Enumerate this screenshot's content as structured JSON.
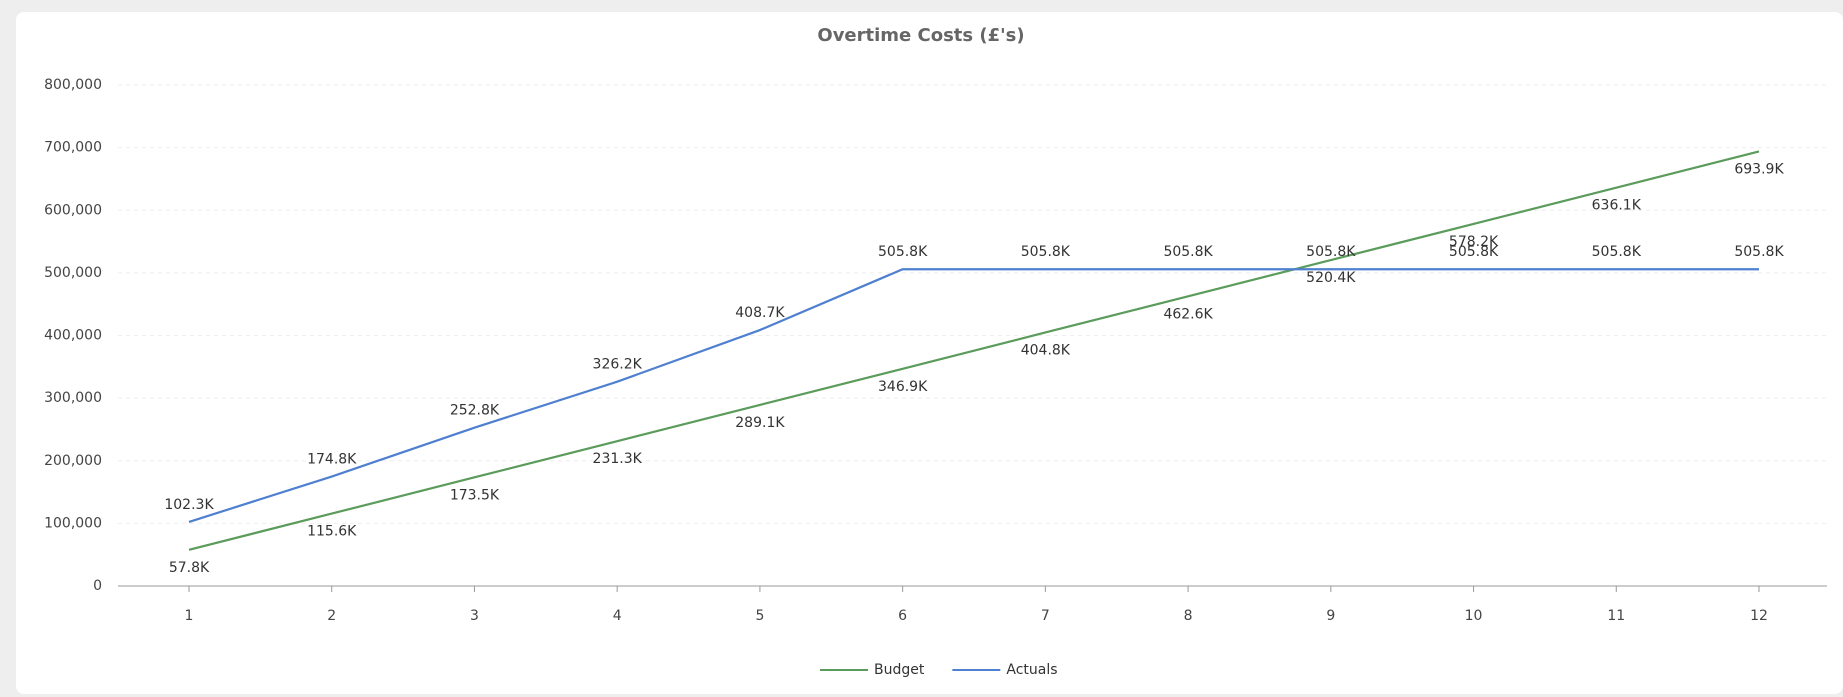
{
  "chart_data": {
    "type": "line",
    "title": "Overtime Costs (£'s)",
    "categories": [
      "1",
      "2",
      "3",
      "4",
      "5",
      "6",
      "7",
      "8",
      "9",
      "10",
      "11",
      "12"
    ],
    "series": [
      {
        "name": "Budget",
        "color": "#5b9b5b",
        "values": [
          57800,
          115600,
          173500,
          231300,
          289100,
          346900,
          404800,
          462600,
          520400,
          578200,
          636100,
          693900
        ],
        "value_labels": [
          "57.8K",
          "115.6K",
          "173.5K",
          "231.3K",
          "289.1K",
          "346.9K",
          "404.8K",
          "462.6K",
          "520.4K",
          "578.2K",
          "636.1K",
          "693.9K"
        ]
      },
      {
        "name": "Actuals",
        "color": "#4f80d0",
        "values": [
          102300,
          174800,
          252800,
          326200,
          408700,
          505800,
          505800,
          505800,
          505800,
          505800,
          505800,
          505800
        ],
        "value_labels": [
          "102.3K",
          "174.8K",
          "252.8K",
          "326.2K",
          "408.7K",
          "505.8K",
          "505.8K",
          "505.8K",
          "505.8K",
          "505.8K",
          "505.8K",
          "505.8K"
        ]
      }
    ],
    "ylim": [
      0,
      800000
    ],
    "yticks": [
      0,
      {
        "value": 100000,
        "label": "100,000"
      },
      {
        "value": 200000,
        "label": "200,000"
      },
      {
        "value": 300000,
        "label": "300,000"
      },
      {
        "value": 400000,
        "label": "400,000"
      },
      {
        "value": 500000,
        "label": "500,000"
      },
      {
        "value": 600000,
        "label": "600,000"
      },
      {
        "value": 700000,
        "label": "700,000"
      },
      {
        "value": 800000,
        "label": "800,000"
      }
    ],
    "grid": true,
    "legend": "bottom"
  }
}
